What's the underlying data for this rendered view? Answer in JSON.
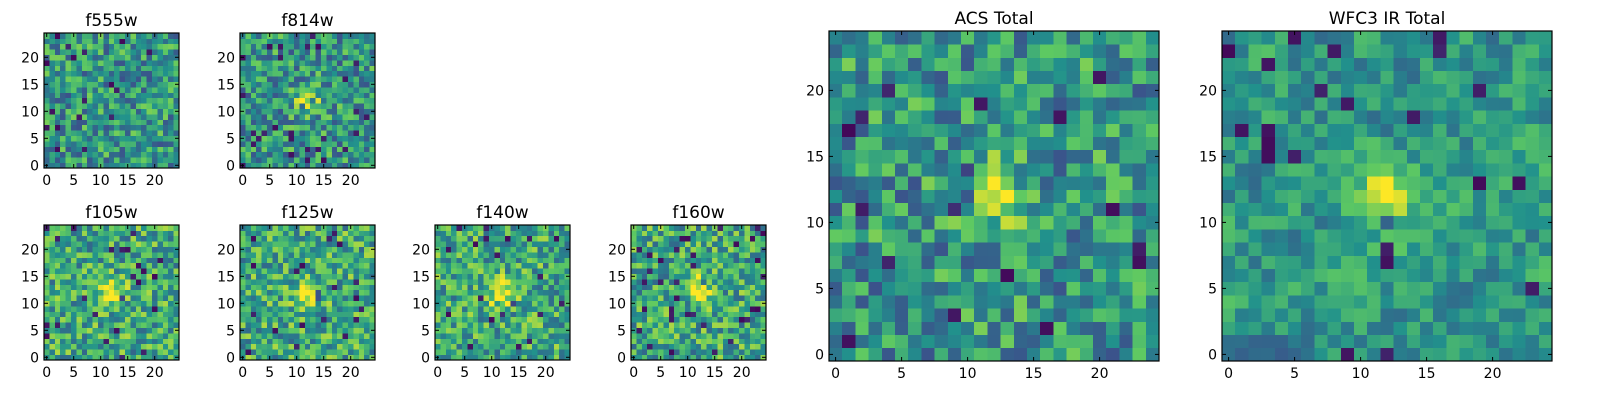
{
  "figure": {
    "description_free": true,
    "colormap": [
      "#440154",
      "#3b528b",
      "#21918c",
      "#5ec962",
      "#fde725"
    ],
    "frame_color": "#000000",
    "background": "#ffffff"
  },
  "chart_data": [
    {
      "type": "heatmap",
      "id": "f555w",
      "title": "f555w",
      "grid": [
        25,
        25
      ],
      "xlim": [
        0,
        24
      ],
      "ylim": [
        0,
        24
      ],
      "xticks": [
        0,
        5,
        10,
        15,
        20
      ],
      "yticks": [
        0,
        5,
        10,
        15,
        20
      ],
      "texture": "uniform noise",
      "hotspot": null,
      "seed": 11
    },
    {
      "type": "heatmap",
      "id": "f814w",
      "title": "f814w",
      "grid": [
        25,
        25
      ],
      "xlim": [
        0,
        24
      ],
      "ylim": [
        0,
        24
      ],
      "xticks": [
        0,
        5,
        10,
        15,
        20
      ],
      "yticks": [
        0,
        5,
        10,
        15,
        20
      ],
      "texture": "noise with central source",
      "hotspot": [
        12,
        12
      ],
      "seed": 23
    },
    {
      "type": "heatmap",
      "id": "f105w",
      "title": "f105w",
      "grid": [
        25,
        25
      ],
      "xlim": [
        0,
        24
      ],
      "ylim": [
        0,
        24
      ],
      "xticks": [
        0,
        5,
        10,
        15,
        20
      ],
      "yticks": [
        0,
        5,
        10,
        15,
        20
      ],
      "texture": "bright noise with central source",
      "hotspot": [
        12,
        12
      ],
      "seed": 37
    },
    {
      "type": "heatmap",
      "id": "f125w",
      "title": "f125w",
      "grid": [
        25,
        25
      ],
      "xlim": [
        0,
        24
      ],
      "ylim": [
        0,
        24
      ],
      "xticks": [
        0,
        5,
        10,
        15,
        20
      ],
      "yticks": [
        0,
        5,
        10,
        15,
        20
      ],
      "texture": "bright noise with central source",
      "hotspot": [
        12,
        12
      ],
      "seed": 41
    },
    {
      "type": "heatmap",
      "id": "f140w",
      "title": "f140w",
      "grid": [
        25,
        25
      ],
      "xlim": [
        0,
        24
      ],
      "ylim": [
        0,
        24
      ],
      "xticks": [
        0,
        5,
        10,
        15,
        20
      ],
      "yticks": [
        0,
        5,
        10,
        15,
        20
      ],
      "texture": "bright noise with central source",
      "hotspot": [
        12,
        12
      ],
      "seed": 53
    },
    {
      "type": "heatmap",
      "id": "f160w",
      "title": "f160w",
      "grid": [
        25,
        25
      ],
      "xlim": [
        0,
        24
      ],
      "ylim": [
        0,
        24
      ],
      "xticks": [
        0,
        5,
        10,
        15,
        20
      ],
      "yticks": [
        0,
        5,
        10,
        15,
        20
      ],
      "texture": "bright noise with central source",
      "hotspot": [
        12,
        13
      ],
      "seed": 67
    },
    {
      "type": "heatmap",
      "id": "acs-total",
      "title": "ACS Total",
      "grid": [
        25,
        25
      ],
      "xlim": [
        0,
        24
      ],
      "ylim": [
        0,
        24
      ],
      "xticks": [
        0,
        5,
        10,
        15,
        20
      ],
      "yticks": [
        0,
        5,
        10,
        15,
        20
      ],
      "texture": "noise with central source",
      "hotspot": [
        12,
        12
      ],
      "seed": 79
    },
    {
      "type": "heatmap",
      "id": "wfc3-ir-total",
      "title": "WFC3 IR Total",
      "grid": [
        25,
        25
      ],
      "xlim": [
        0,
        24
      ],
      "ylim": [
        0,
        24
      ],
      "xticks": [
        0,
        5,
        10,
        15,
        20
      ],
      "yticks": [
        0,
        5,
        10,
        15,
        20
      ],
      "texture": "smooth noise with central source",
      "hotspot": [
        12,
        12
      ],
      "seed": 97
    }
  ]
}
